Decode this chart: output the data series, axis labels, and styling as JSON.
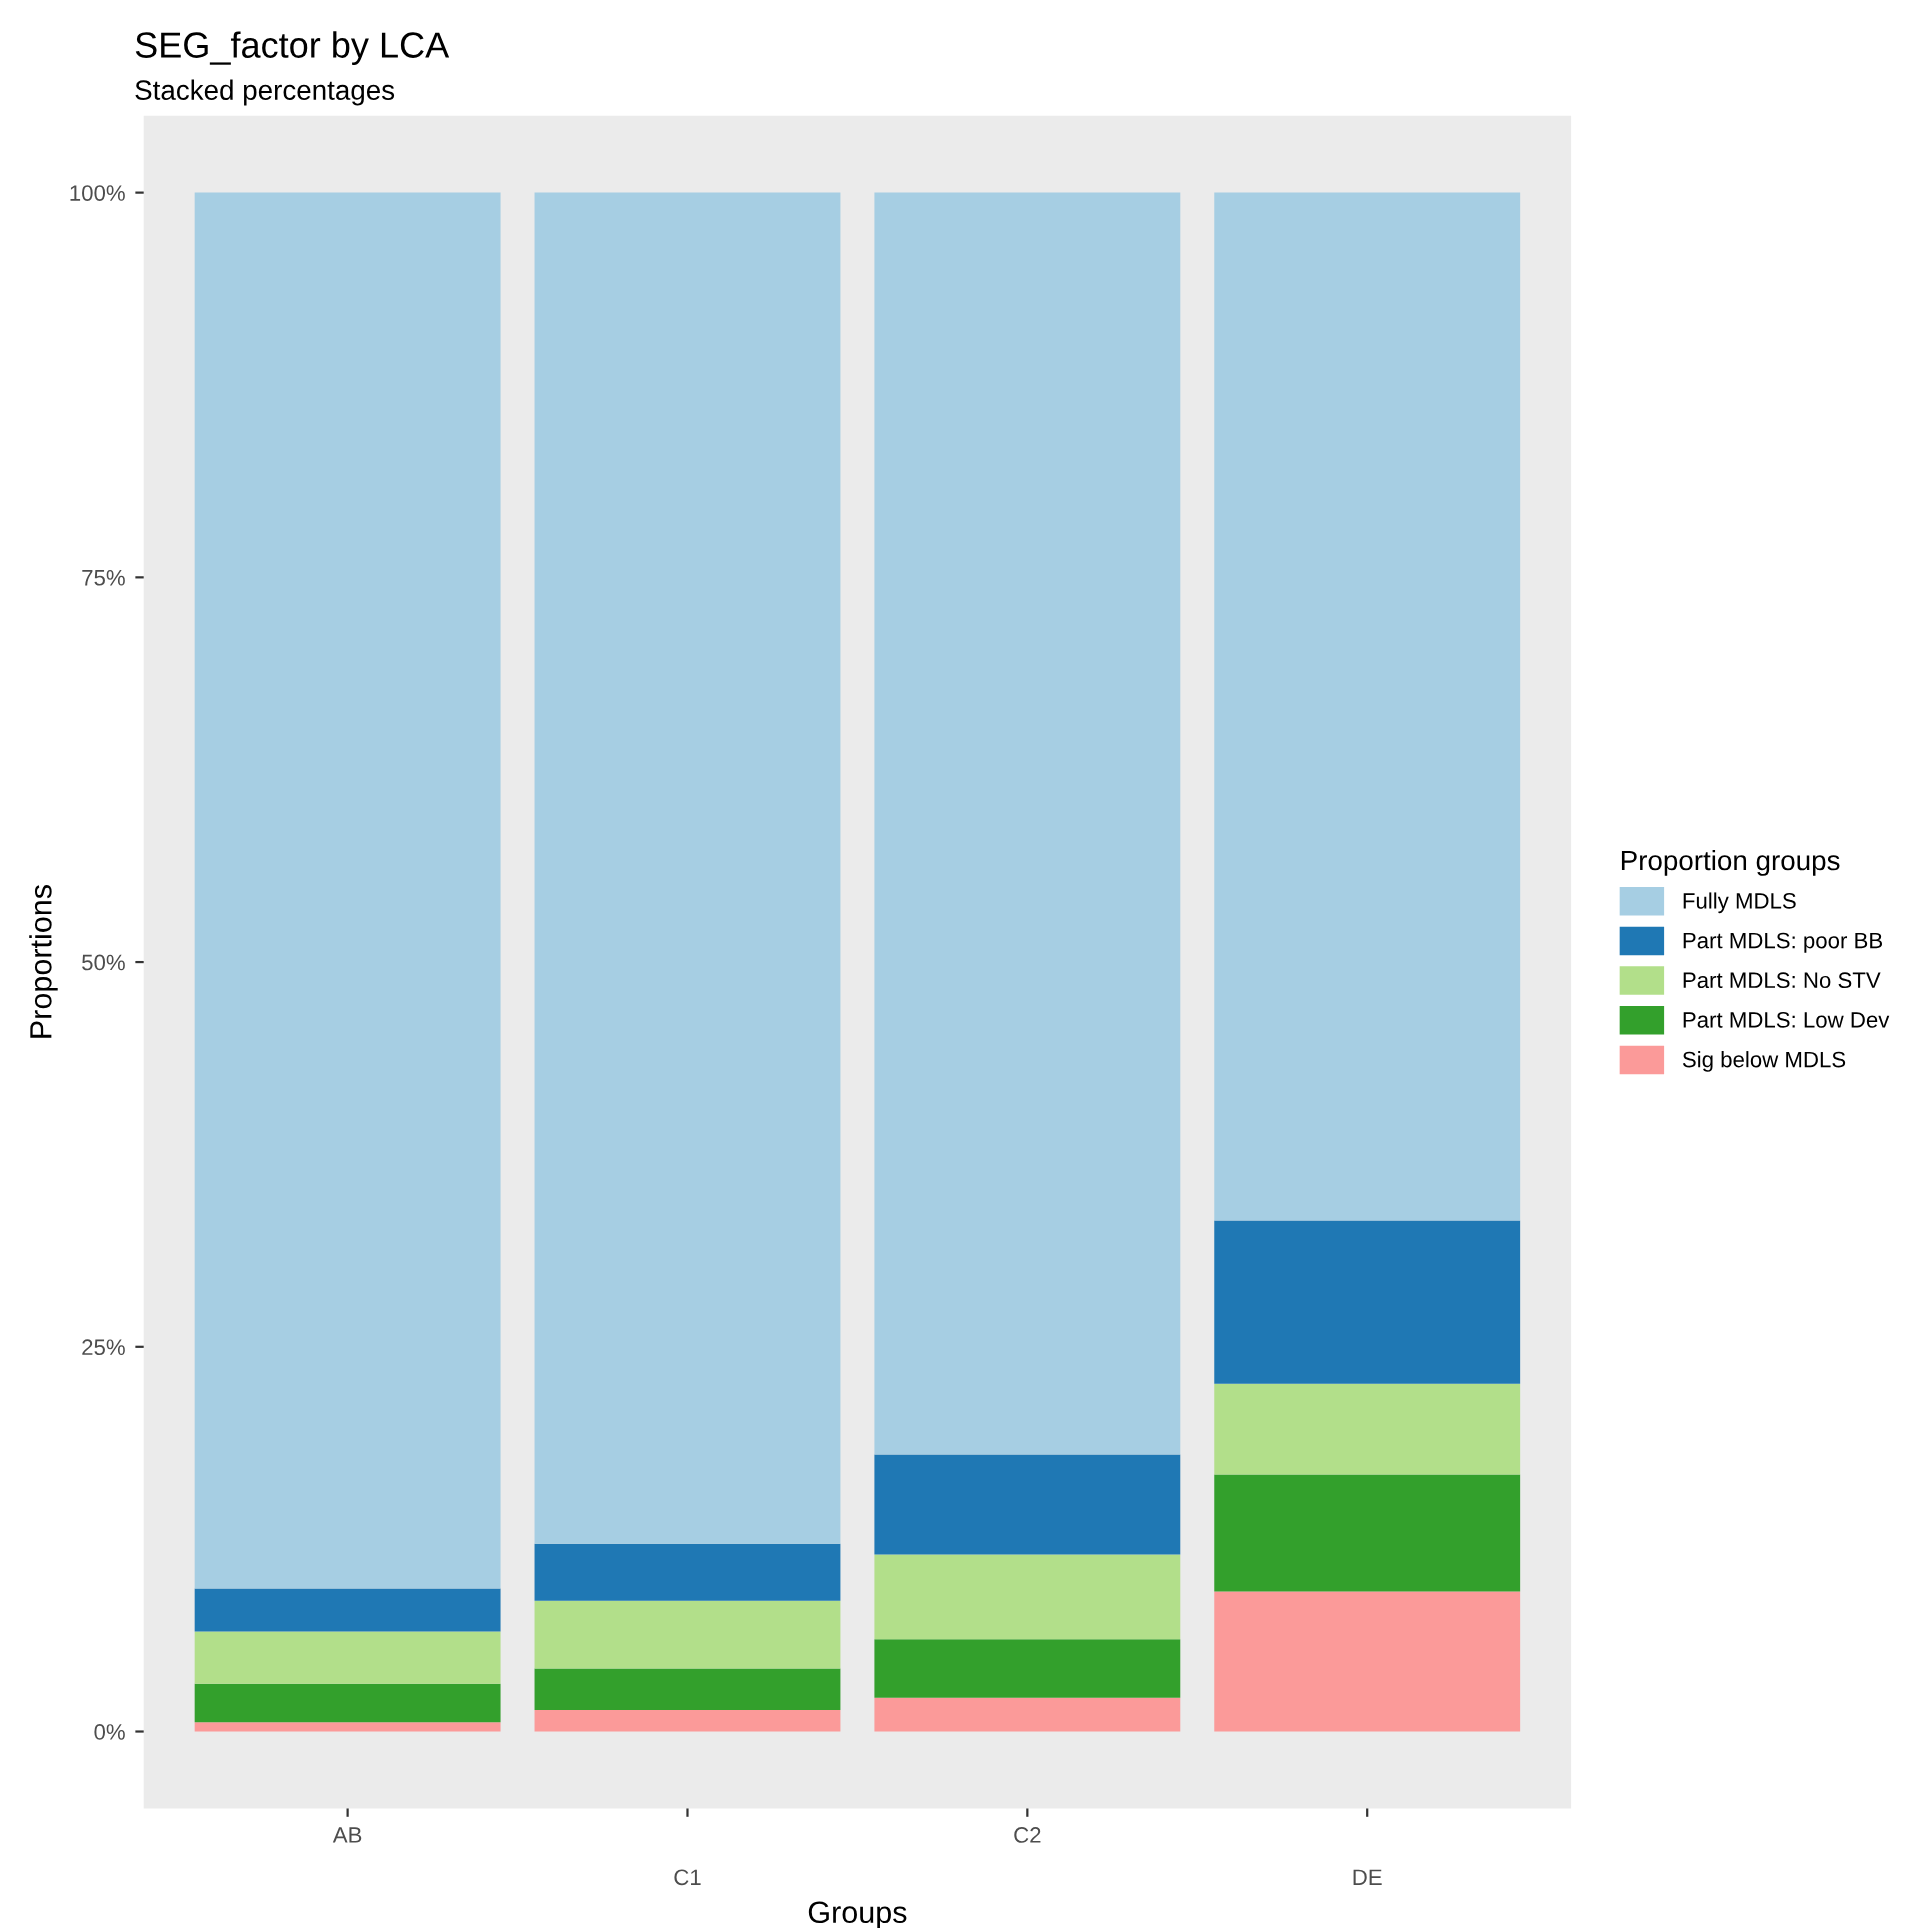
{
  "chart_data": {
    "type": "bar",
    "title": "SEG_factor by LCA",
    "subtitle": "Stacked percentages",
    "xlabel": "Groups",
    "ylabel": "Proportions",
    "legend_title": "Proportion groups",
    "categories": [
      "AB",
      "C1",
      "C2",
      "DE"
    ],
    "stacked": true,
    "series": [
      {
        "name": "Sig below MDLS",
        "color": "#fb9a99",
        "values": [
          0.6,
          1.4,
          2.2,
          9.1
        ]
      },
      {
        "name": "Part MDLS: Low Dev",
        "color": "#33a02c",
        "values": [
          2.5,
          2.7,
          3.8,
          7.6
        ]
      },
      {
        "name": "Part MDLS: No STV",
        "color": "#b2df8a",
        "values": [
          3.4,
          4.4,
          5.5,
          5.9
        ]
      },
      {
        "name": "Part MDLS: poor BB",
        "color": "#1f78b4",
        "values": [
          2.8,
          3.7,
          6.5,
          10.6
        ]
      },
      {
        "name": "Fully MDLS",
        "color": "#a6cee3",
        "values": [
          90.7,
          87.8,
          82.0,
          66.8
        ]
      }
    ],
    "ylim": [
      -5,
      105
    ],
    "yticks": [
      {
        "value": 0,
        "label": "0%"
      },
      {
        "value": 25,
        "label": "25%"
      },
      {
        "value": 50,
        "label": "50%"
      },
      {
        "value": 75,
        "label": "75%"
      },
      {
        "value": 100,
        "label": "100%"
      }
    ],
    "grid": false,
    "legend": "right"
  }
}
